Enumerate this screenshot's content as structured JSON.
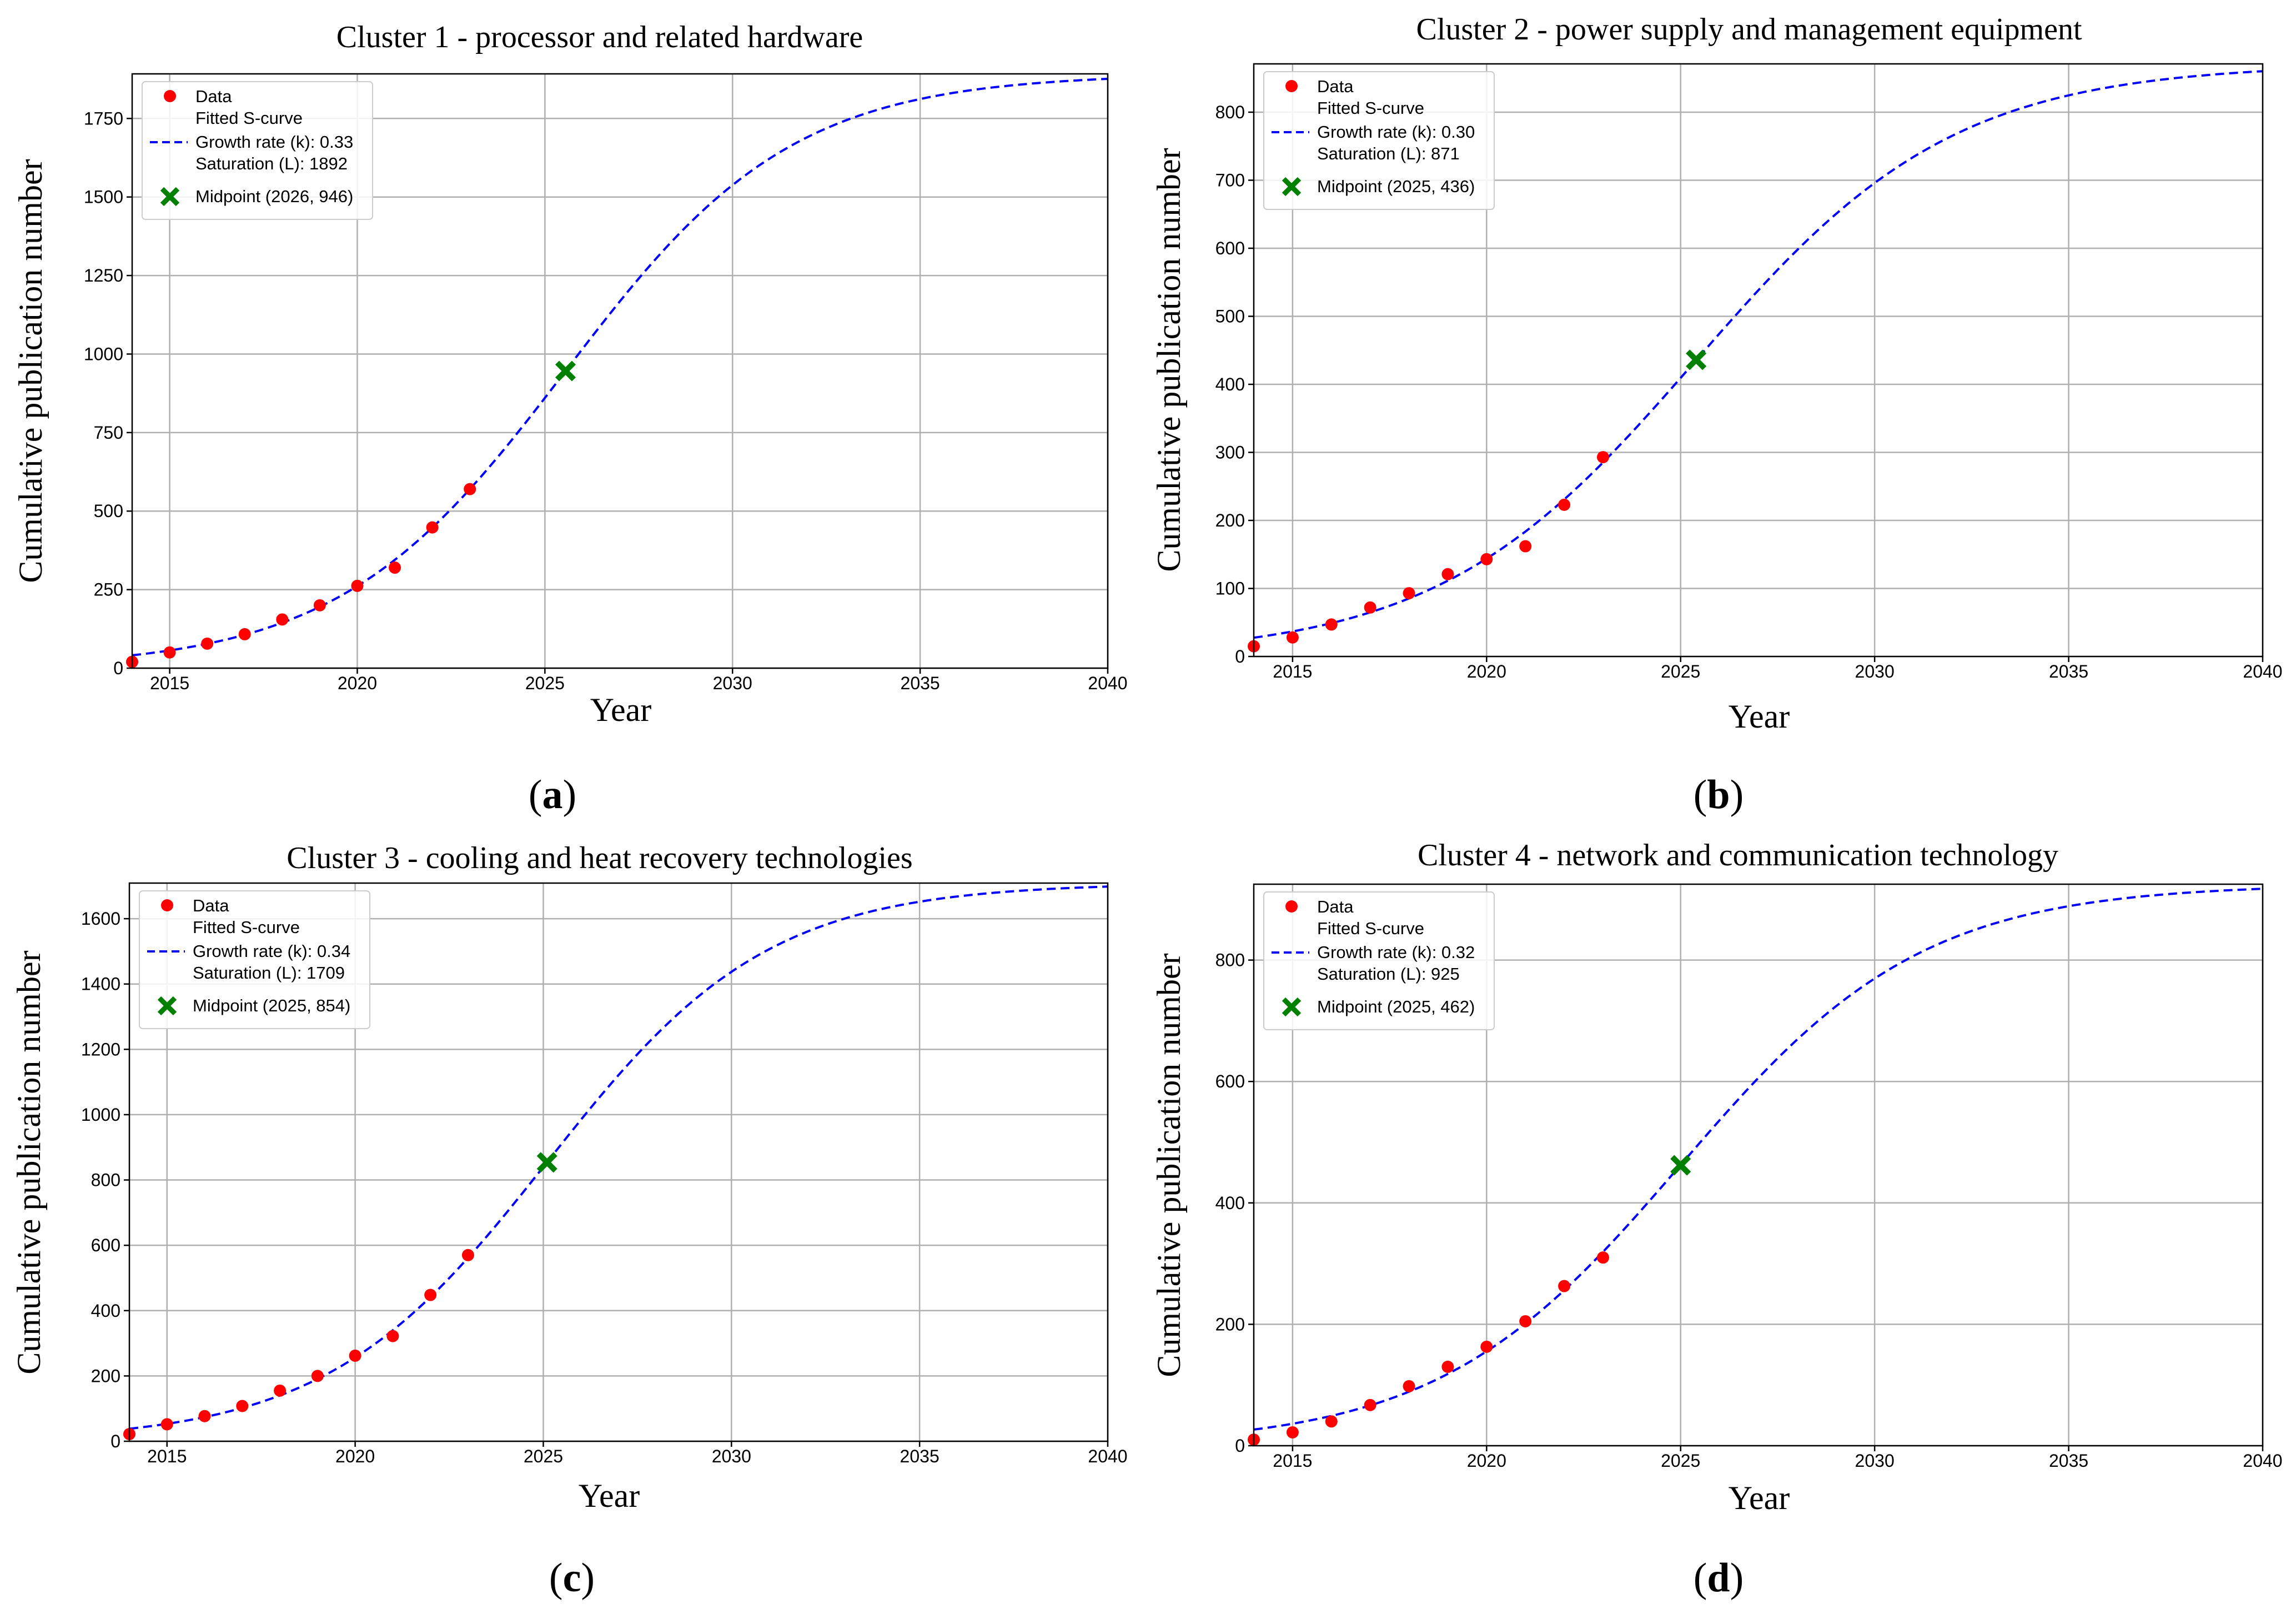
{
  "colors": {
    "data": "#ff0000",
    "curve": "#0000ff",
    "midpoint": "#008000",
    "grid": "#b0b0b0"
  },
  "legend_labels": {
    "data": "Data",
    "fitted": "Fitted S-curve"
  },
  "chart_data": [
    {
      "id": "a",
      "type": "scatter",
      "caption": "a",
      "title": "Cluster 1 - processor and related hardware",
      "xlabel": "Year",
      "ylabel": "Cumulative publication number",
      "xlim": [
        2014,
        2040
      ],
      "ylim": [
        0,
        1892
      ],
      "xticks": [
        2015,
        2020,
        2025,
        2030,
        2035,
        2040
      ],
      "yticks": [
        0,
        250,
        500,
        750,
        1000,
        1250,
        1500,
        1750
      ],
      "grid": true,
      "legend_position": "upper-left",
      "growth_label": "Growth rate (k): 0.33",
      "saturation_label": "Saturation (L): 1892",
      "midpoint_label": "Midpoint (2026, 946)",
      "fit": {
        "k": 0.33,
        "L": 1892,
        "x0": 2025.55
      },
      "midpoint": {
        "x": 2025.55,
        "y": 946
      },
      "data_points": {
        "x": [
          2014,
          2015,
          2016,
          2017,
          2018,
          2019,
          2020,
          2021,
          2022,
          2023
        ],
        "y": [
          20,
          50,
          78,
          108,
          155,
          200,
          262,
          320,
          448,
          570
        ]
      }
    },
    {
      "id": "b",
      "type": "scatter",
      "caption": "b",
      "title": "Cluster 2 - power supply and management equipment",
      "xlabel": "Year",
      "ylabel": "Cumulative publication number",
      "xlim": [
        2014,
        2040
      ],
      "ylim": [
        0,
        871
      ],
      "xticks": [
        2015,
        2020,
        2025,
        2030,
        2035,
        2040
      ],
      "yticks": [
        0,
        100,
        200,
        300,
        400,
        500,
        600,
        700,
        800
      ],
      "grid": true,
      "legend_position": "upper-left",
      "growth_label": "Growth rate (k): 0.30",
      "saturation_label": "Saturation (L): 871",
      "midpoint_label": "Midpoint (2025, 436)",
      "fit": {
        "k": 0.3,
        "L": 871,
        "x0": 2025.4
      },
      "midpoint": {
        "x": 2025.4,
        "y": 436
      },
      "data_points": {
        "x": [
          2014,
          2015,
          2016,
          2017,
          2018,
          2019,
          2020,
          2021,
          2022,
          2023
        ],
        "y": [
          15,
          28,
          47,
          72,
          93,
          121,
          143,
          162,
          223,
          293
        ]
      }
    },
    {
      "id": "c",
      "type": "scatter",
      "caption": "c",
      "title": "Cluster 3 - cooling and heat recovery technologies",
      "xlabel": "Year",
      "ylabel": "Cumulative publication number",
      "xlim": [
        2014,
        2040
      ],
      "ylim": [
        0,
        1709
      ],
      "xticks": [
        2015,
        2020,
        2025,
        2030,
        2035,
        2040
      ],
      "yticks": [
        0,
        200,
        400,
        600,
        800,
        1000,
        1200,
        1400,
        1600
      ],
      "grid": true,
      "legend_position": "upper-left",
      "growth_label": "Growth rate (k): 0.34",
      "saturation_label": "Saturation (L): 1709",
      "midpoint_label": "Midpoint (2025, 854)",
      "fit": {
        "k": 0.34,
        "L": 1709,
        "x0": 2025.1
      },
      "midpoint": {
        "x": 2025.1,
        "y": 854
      },
      "data_points": {
        "x": [
          2014,
          2015,
          2016,
          2017,
          2018,
          2019,
          2020,
          2021,
          2022,
          2023
        ],
        "y": [
          22,
          52,
          77,
          108,
          155,
          200,
          262,
          322,
          448,
          570
        ]
      }
    },
    {
      "id": "d",
      "type": "scatter",
      "caption": "d",
      "title": "Cluster 4 - network and communication technology",
      "xlabel": "Year",
      "ylabel": "Cumulative publication number",
      "xlim": [
        2014,
        2040
      ],
      "ylim": [
        0,
        925
      ],
      "xticks": [
        2015,
        2020,
        2025,
        2030,
        2035,
        2040
      ],
      "yticks": [
        0,
        200,
        400,
        600,
        800
      ],
      "grid": true,
      "legend_position": "upper-left",
      "growth_label": "Growth rate (k): 0.32",
      "saturation_label": "Saturation (L): 925",
      "midpoint_label": "Midpoint (2025, 462)",
      "fit": {
        "k": 0.32,
        "L": 925,
        "x0": 2025.0
      },
      "midpoint": {
        "x": 2025.0,
        "y": 462
      },
      "data_points": {
        "x": [
          2014,
          2015,
          2016,
          2017,
          2018,
          2019,
          2020,
          2021,
          2022,
          2023
        ],
        "y": [
          10,
          22,
          40,
          67,
          98,
          130,
          163,
          205,
          263,
          310
        ]
      }
    }
  ]
}
